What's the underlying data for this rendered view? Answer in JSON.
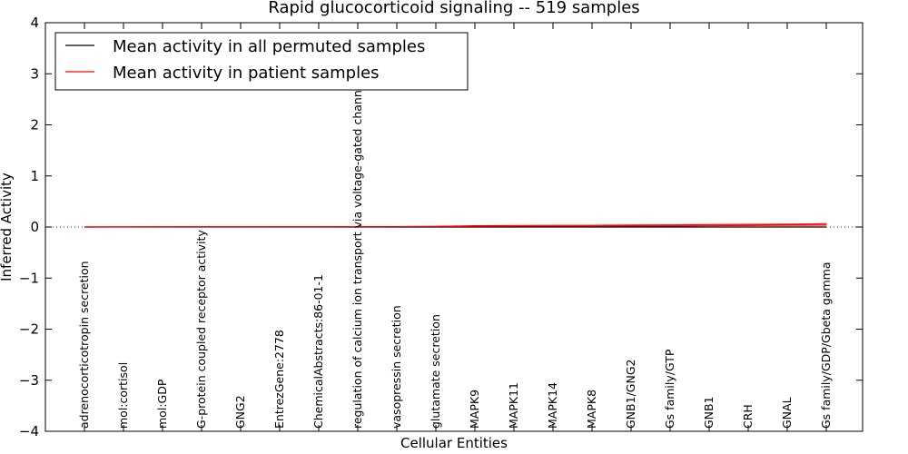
{
  "chart_data": {
    "type": "line",
    "title": "Rapid glucocorticoid signaling -- 519 samples",
    "xlabel": "Cellular Entities",
    "ylabel": "Inferred Activity",
    "ylim": [
      -4,
      4
    ],
    "yticks": [
      -4,
      -3,
      -2,
      -1,
      0,
      1,
      2,
      3,
      4
    ],
    "ytick_labels": [
      "−4",
      "−3",
      "−2",
      "−1",
      "0",
      "1",
      "2",
      "3",
      "4"
    ],
    "categories": [
      "adrenocorticotropin secretion",
      "mol:cortisol",
      "mol:GDP",
      "G-protein coupled receptor activity",
      "GNG2",
      "EntrezGene:2778",
      "ChemicalAbstracts:86-01-1",
      "regulation of calcium ion transport via voltage-gated channel",
      "vasopressin secretion",
      "glutamate secretion",
      "MAPK9",
      "MAPK11",
      "MAPK14",
      "MAPK8",
      "GNB1/GNG2",
      "Gs family/GTP",
      "GNB1",
      "CRH",
      "GNAL",
      "Gs family/GDP/Gbeta gamma"
    ],
    "series": [
      {
        "name": "Mean activity in all permuted samples",
        "color": "#000000",
        "values": [
          0,
          0,
          0,
          0,
          0,
          0,
          0,
          0,
          0,
          0,
          0,
          0,
          0,
          0,
          0,
          0,
          0,
          0,
          0,
          0
        ]
      },
      {
        "name": "Mean activity in patient samples",
        "color": "#ff0000",
        "values": [
          0.0,
          0.002,
          0.003,
          0.004,
          0.004,
          0.005,
          0.005,
          0.006,
          0.008,
          0.01,
          0.015,
          0.018,
          0.02,
          0.022,
          0.028,
          0.03,
          0.035,
          0.04,
          0.045,
          0.05
        ],
        "band_upper": [
          0.0,
          0.004,
          0.005,
          0.006,
          0.006,
          0.007,
          0.008,
          0.009,
          0.012,
          0.016,
          0.03,
          0.034,
          0.036,
          0.038,
          0.045,
          0.048,
          0.052,
          0.058,
          0.062,
          0.07
        ],
        "band_lower": [
          0.0,
          0.0,
          0.001,
          0.002,
          0.002,
          0.003,
          0.003,
          0.003,
          0.004,
          0.004,
          0.0,
          0.002,
          0.004,
          0.006,
          0.012,
          0.014,
          0.02,
          0.024,
          0.028,
          0.032
        ]
      }
    ],
    "legend": {
      "position": "top-left"
    }
  }
}
